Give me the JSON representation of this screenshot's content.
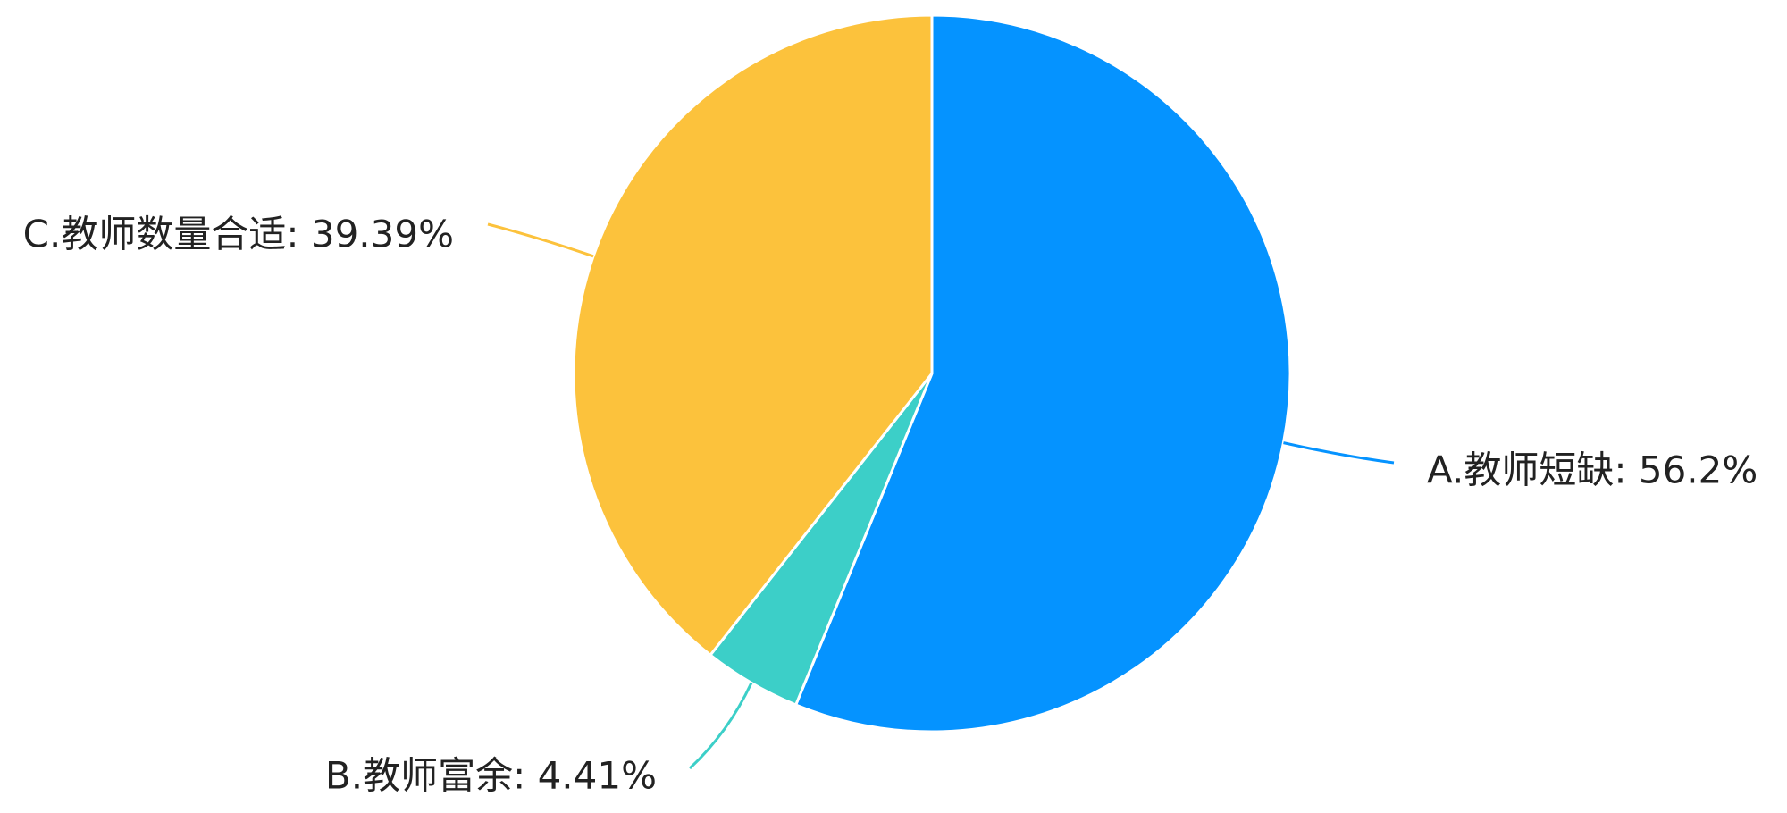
{
  "chart_data": {
    "type": "pie",
    "categories": [
      "A.教师短缺",
      "B.教师富余",
      "C.教师数量合适"
    ],
    "labels": [
      "A.教师短缺: 56.2%",
      "B.教师富余: 4.41%",
      "C.教师数量合适: 39.39%"
    ],
    "values": [
      56.2,
      4.41,
      39.39
    ],
    "colors": [
      "#0593ff",
      "#3ccfc8",
      "#fcc23c"
    ]
  }
}
